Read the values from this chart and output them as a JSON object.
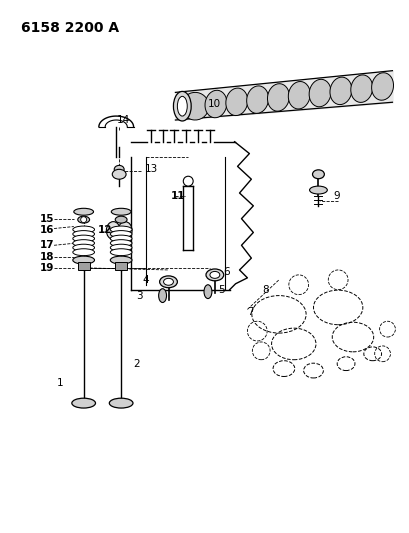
{
  "title": "6158 2200 A",
  "bg_color": "#ffffff",
  "line_color": "#000000",
  "label_color": "#000000",
  "title_fontsize": 10,
  "label_fontsize": 7.5,
  "fig_width": 4.1,
  "fig_height": 5.33,
  "dpi": 100
}
